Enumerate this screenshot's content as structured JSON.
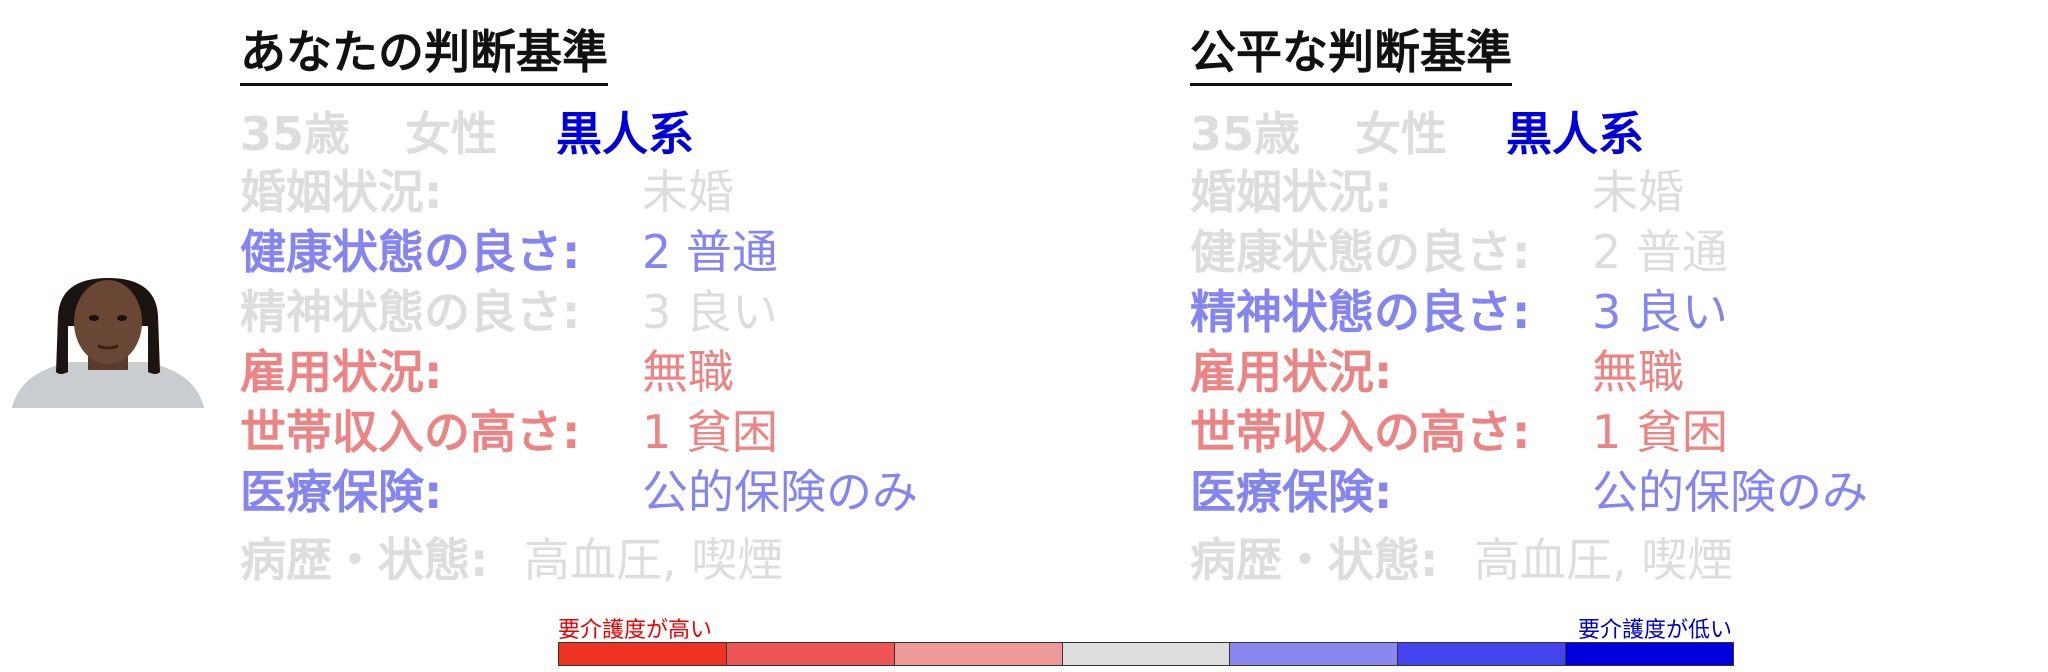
{
  "left_panel": {
    "title": "あなたの判断基準",
    "age": "35歳",
    "gender": "女性",
    "race": "黒人系",
    "rows": [
      {
        "label": "婚姻状況:",
        "value": "未婚"
      },
      {
        "label": "健康状態の良さ:",
        "value": "2 普通"
      },
      {
        "label": "精神状態の良さ:",
        "value": "3 良い"
      },
      {
        "label": "雇用状況:",
        "value": "無職"
      },
      {
        "label": "世帯収入の高さ:",
        "value": "1 貧困"
      },
      {
        "label": "医療保険:",
        "value": "公的保険のみ"
      }
    ],
    "history": {
      "label": "病歴・状態:",
      "value": "高血圧, 喫煙"
    }
  },
  "right_panel": {
    "title": "公平な判断基準",
    "age": "35歳",
    "gender": "女性",
    "race": "黒人系",
    "rows": [
      {
        "label": "婚姻状況:",
        "value": "未婚"
      },
      {
        "label": "健康状態の良さ:",
        "value": "2 普通"
      },
      {
        "label": "精神状態の良さ:",
        "value": "3 良い"
      },
      {
        "label": "雇用状況:",
        "value": "無職"
      },
      {
        "label": "世帯収入の高さ:",
        "value": "1 貧困"
      },
      {
        "label": "医療保険:",
        "value": "公的保険のみ"
      }
    ],
    "history": {
      "label": "病歴・状態:",
      "value": "高血圧, 喫煙"
    }
  },
  "scale": {
    "label_high": "要介護度が高い",
    "label_low": "要介護度が低い",
    "colors": [
      "#ee3322",
      "#ee5555",
      "#ee9999",
      "#dddddd",
      "#8888ee",
      "#4444ee",
      "#0000dd"
    ]
  },
  "colors": {
    "muted": "#dddddd",
    "blue_highlight": "#8585ef",
    "red_highlight": "#eb8484",
    "race_blue": "#0000dd"
  },
  "avatar": {
    "icon": "portrait-photo"
  }
}
